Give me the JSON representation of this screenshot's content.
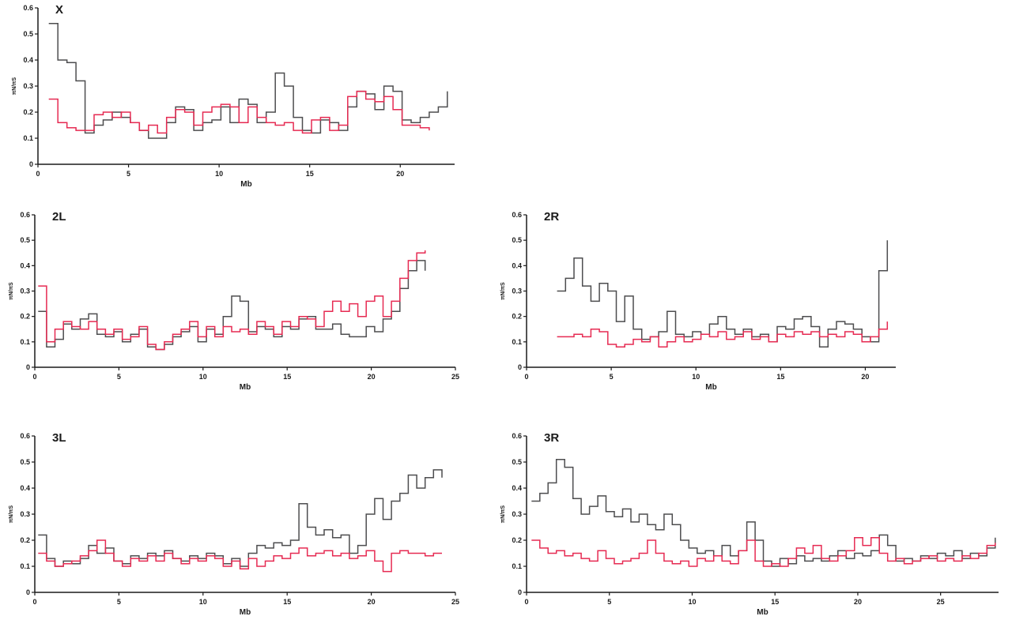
{
  "figure": {
    "background": "#ffffff",
    "axis_color": "#1a1a1a",
    "series_colors": {
      "gray": "#4d4d4f",
      "red": "#e62a52"
    }
  },
  "chart_data": [
    {
      "id": "X",
      "type": "line",
      "title": "X",
      "xlabel": "Mb",
      "ylabel": "πN/πS",
      "xlim": [
        0,
        23
      ],
      "ylim": [
        0,
        0.6
      ],
      "xticks": [
        0,
        5,
        10,
        15,
        20
      ],
      "yticks": [
        0,
        0.1,
        0.2,
        0.3,
        0.4,
        0.5,
        0.6
      ],
      "grid": false,
      "legend": "none",
      "series": [
        {
          "name": "gray",
          "color": "#4d4d4f",
          "x_start": 0.6,
          "x_step": 0.5,
          "values": [
            0.54,
            0.4,
            0.39,
            0.32,
            0.12,
            0.15,
            0.17,
            0.2,
            0.18,
            0.16,
            0.13,
            0.1,
            0.1,
            0.16,
            0.22,
            0.21,
            0.13,
            0.16,
            0.17,
            0.22,
            0.16,
            0.25,
            0.23,
            0.16,
            0.2,
            0.35,
            0.3,
            0.18,
            0.13,
            0.12,
            0.17,
            0.16,
            0.13,
            0.22,
            0.28,
            0.27,
            0.21,
            0.3,
            0.28,
            0.17,
            0.16,
            0.18,
            0.2,
            0.22,
            0.28
          ]
        },
        {
          "name": "red",
          "color": "#e62a52",
          "x_start": 0.6,
          "x_step": 0.5,
          "values": [
            0.25,
            0.16,
            0.14,
            0.13,
            0.13,
            0.19,
            0.2,
            0.18,
            0.2,
            0.16,
            0.13,
            0.15,
            0.12,
            0.18,
            0.21,
            0.2,
            0.15,
            0.2,
            0.22,
            0.23,
            0.22,
            0.16,
            0.22,
            0.18,
            0.16,
            0.15,
            0.16,
            0.13,
            0.12,
            0.17,
            0.18,
            0.13,
            0.15,
            0.26,
            0.28,
            0.25,
            0.24,
            0.26,
            0.21,
            0.15,
            0.15,
            0.14,
            0.13
          ]
        }
      ]
    },
    {
      "id": "2L",
      "type": "line",
      "title": "2L",
      "xlabel": "Mb",
      "ylabel": "πN/πS",
      "xlim": [
        0,
        25
      ],
      "ylim": [
        0,
        0.6
      ],
      "xticks": [
        0,
        5,
        10,
        15,
        20,
        25
      ],
      "yticks": [
        0,
        0.1,
        0.2,
        0.3,
        0.4,
        0.5,
        0.6
      ],
      "grid": false,
      "legend": "none",
      "series": [
        {
          "name": "gray",
          "color": "#4d4d4f",
          "x_start": 0.2,
          "x_step": 0.5,
          "values": [
            0.22,
            0.08,
            0.11,
            0.17,
            0.15,
            0.19,
            0.21,
            0.13,
            0.12,
            0.14,
            0.1,
            0.13,
            0.15,
            0.08,
            0.07,
            0.09,
            0.12,
            0.14,
            0.16,
            0.1,
            0.15,
            0.13,
            0.2,
            0.28,
            0.26,
            0.14,
            0.16,
            0.15,
            0.12,
            0.16,
            0.15,
            0.19,
            0.2,
            0.15,
            0.15,
            0.17,
            0.13,
            0.12,
            0.12,
            0.16,
            0.14,
            0.19,
            0.22,
            0.31,
            0.38,
            0.42,
            0.38
          ]
        },
        {
          "name": "red",
          "color": "#e62a52",
          "x_start": 0.2,
          "x_step": 0.5,
          "values": [
            0.32,
            0.1,
            0.15,
            0.18,
            0.16,
            0.15,
            0.18,
            0.15,
            0.13,
            0.15,
            0.11,
            0.12,
            0.16,
            0.09,
            0.07,
            0.1,
            0.13,
            0.15,
            0.18,
            0.12,
            0.16,
            0.12,
            0.16,
            0.14,
            0.15,
            0.13,
            0.18,
            0.16,
            0.13,
            0.18,
            0.16,
            0.2,
            0.19,
            0.16,
            0.22,
            0.26,
            0.22,
            0.25,
            0.2,
            0.26,
            0.28,
            0.2,
            0.26,
            0.35,
            0.42,
            0.45,
            0.46
          ]
        }
      ]
    },
    {
      "id": "2R",
      "type": "line",
      "title": "2R",
      "xlabel": "Mb",
      "ylabel": "πN/πS",
      "xlim": [
        0,
        21.8
      ],
      "ylim": [
        0,
        0.6
      ],
      "xticks": [
        0,
        5,
        10,
        15,
        20
      ],
      "yticks": [
        0,
        0.1,
        0.2,
        0.3,
        0.4,
        0.5,
        0.6
      ],
      "grid": false,
      "legend": "none",
      "series": [
        {
          "name": "gray",
          "color": "#4d4d4f",
          "x_start": 1.8,
          "x_step": 0.5,
          "values": [
            0.3,
            0.35,
            0.43,
            0.32,
            0.26,
            0.33,
            0.3,
            0.18,
            0.28,
            0.15,
            0.11,
            0.12,
            0.14,
            0.22,
            0.13,
            0.12,
            0.14,
            0.13,
            0.17,
            0.2,
            0.15,
            0.13,
            0.15,
            0.12,
            0.13,
            0.1,
            0.16,
            0.15,
            0.19,
            0.2,
            0.16,
            0.08,
            0.15,
            0.18,
            0.17,
            0.15,
            0.12,
            0.1,
            0.38,
            0.5
          ]
        },
        {
          "name": "red",
          "color": "#e62a52",
          "x_start": 1.8,
          "x_step": 0.5,
          "values": [
            0.12,
            0.12,
            0.13,
            0.12,
            0.15,
            0.14,
            0.09,
            0.08,
            0.09,
            0.11,
            0.1,
            0.12,
            0.08,
            0.1,
            0.12,
            0.1,
            0.11,
            0.13,
            0.12,
            0.14,
            0.11,
            0.12,
            0.14,
            0.11,
            0.12,
            0.1,
            0.13,
            0.12,
            0.14,
            0.13,
            0.14,
            0.12,
            0.13,
            0.12,
            0.14,
            0.13,
            0.1,
            0.12,
            0.15,
            0.18
          ]
        }
      ]
    },
    {
      "id": "3L",
      "type": "line",
      "title": "3L",
      "xlabel": "Mb",
      "ylabel": "πN/πS",
      "xlim": [
        0,
        25
      ],
      "ylim": [
        0,
        0.6
      ],
      "xticks": [
        0,
        5,
        10,
        15,
        20,
        25
      ],
      "yticks": [
        0,
        0.1,
        0.2,
        0.3,
        0.4,
        0.5,
        0.6
      ],
      "grid": false,
      "legend": "none",
      "series": [
        {
          "name": "gray",
          "color": "#4d4d4f",
          "x_start": 0.2,
          "x_step": 0.5,
          "values": [
            0.22,
            0.13,
            0.1,
            0.12,
            0.11,
            0.13,
            0.18,
            0.15,
            0.17,
            0.12,
            0.11,
            0.14,
            0.13,
            0.15,
            0.14,
            0.16,
            0.13,
            0.12,
            0.14,
            0.13,
            0.15,
            0.14,
            0.11,
            0.13,
            0.1,
            0.15,
            0.18,
            0.17,
            0.19,
            0.18,
            0.2,
            0.34,
            0.25,
            0.22,
            0.24,
            0.21,
            0.22,
            0.15,
            0.18,
            0.3,
            0.36,
            0.28,
            0.35,
            0.38,
            0.45,
            0.4,
            0.44,
            0.47,
            0.44
          ]
        },
        {
          "name": "red",
          "color": "#e62a52",
          "x_start": 0.2,
          "x_step": 0.5,
          "values": [
            0.15,
            0.12,
            0.1,
            0.11,
            0.12,
            0.14,
            0.16,
            0.2,
            0.15,
            0.12,
            0.1,
            0.13,
            0.12,
            0.14,
            0.12,
            0.15,
            0.13,
            0.11,
            0.13,
            0.12,
            0.14,
            0.13,
            0.1,
            0.12,
            0.09,
            0.13,
            0.1,
            0.12,
            0.14,
            0.13,
            0.15,
            0.17,
            0.14,
            0.15,
            0.16,
            0.14,
            0.15,
            0.13,
            0.14,
            0.16,
            0.12,
            0.08,
            0.15,
            0.16,
            0.15,
            0.15,
            0.14,
            0.15,
            0.15
          ]
        }
      ]
    },
    {
      "id": "3R",
      "type": "line",
      "title": "3R",
      "xlabel": "Mb",
      "ylabel": "πN/πS",
      "xlim": [
        0,
        28.5
      ],
      "ylim": [
        0,
        0.6
      ],
      "xticks": [
        0,
        5,
        10,
        15,
        20,
        25
      ],
      "yticks": [
        0,
        0.1,
        0.2,
        0.3,
        0.4,
        0.5,
        0.6
      ],
      "grid": false,
      "legend": "none",
      "series": [
        {
          "name": "gray",
          "color": "#4d4d4f",
          "x_start": 0.3,
          "x_step": 0.5,
          "values": [
            0.35,
            0.38,
            0.42,
            0.51,
            0.48,
            0.36,
            0.3,
            0.33,
            0.37,
            0.31,
            0.29,
            0.32,
            0.27,
            0.3,
            0.26,
            0.24,
            0.3,
            0.26,
            0.2,
            0.17,
            0.15,
            0.16,
            0.14,
            0.18,
            0.14,
            0.16,
            0.27,
            0.2,
            0.12,
            0.1,
            0.13,
            0.11,
            0.14,
            0.12,
            0.13,
            0.12,
            0.14,
            0.16,
            0.13,
            0.15,
            0.14,
            0.16,
            0.22,
            0.18,
            0.12,
            0.13,
            0.12,
            0.14,
            0.13,
            0.15,
            0.14,
            0.16,
            0.13,
            0.15,
            0.14,
            0.17,
            0.21
          ]
        },
        {
          "name": "red",
          "color": "#e62a52",
          "x_start": 0.3,
          "x_step": 0.5,
          "values": [
            0.2,
            0.17,
            0.15,
            0.16,
            0.14,
            0.15,
            0.13,
            0.12,
            0.16,
            0.13,
            0.11,
            0.12,
            0.13,
            0.15,
            0.2,
            0.15,
            0.12,
            0.11,
            0.12,
            0.1,
            0.13,
            0.12,
            0.14,
            0.12,
            0.11,
            0.16,
            0.2,
            0.12,
            0.1,
            0.11,
            0.1,
            0.13,
            0.17,
            0.15,
            0.18,
            0.13,
            0.12,
            0.14,
            0.16,
            0.21,
            0.18,
            0.21,
            0.15,
            0.12,
            0.13,
            0.11,
            0.12,
            0.13,
            0.14,
            0.12,
            0.13,
            0.12,
            0.14,
            0.13,
            0.15,
            0.18,
            0.19
          ]
        }
      ]
    }
  ]
}
